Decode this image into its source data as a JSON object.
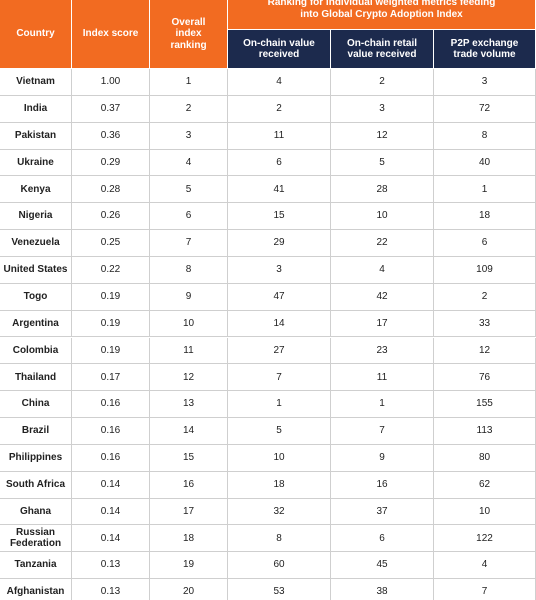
{
  "header": {
    "country": "Country",
    "index_score": "Index score",
    "overall_ranking": "Overall index ranking",
    "group_title": "Ranking for individual weighted metrics feeding into Global Crypto Adoption Index",
    "subheaders": [
      "On-chain value received",
      "On-chain retail value received",
      "P2P exchange trade volume"
    ]
  },
  "table": {
    "rows": [
      [
        "Vietnam",
        "1.00",
        "1",
        "4",
        "2",
        "3"
      ],
      [
        "India",
        "0.37",
        "2",
        "2",
        "3",
        "72"
      ],
      [
        "Pakistan",
        "0.36",
        "3",
        "11",
        "12",
        "8"
      ],
      [
        "Ukraine",
        "0.29",
        "4",
        "6",
        "5",
        "40"
      ],
      [
        "Kenya",
        "0.28",
        "5",
        "41",
        "28",
        "1"
      ],
      [
        "Nigeria",
        "0.26",
        "6",
        "15",
        "10",
        "18"
      ],
      [
        "Venezuela",
        "0.25",
        "7",
        "29",
        "22",
        "6"
      ],
      [
        "United States",
        "0.22",
        "8",
        "3",
        "4",
        "109"
      ],
      [
        "Togo",
        "0.19",
        "9",
        "47",
        "42",
        "2"
      ],
      [
        "Argentina",
        "0.19",
        "10",
        "14",
        "17",
        "33"
      ],
      [
        "Colombia",
        "0.19",
        "11",
        "27",
        "23",
        "12"
      ],
      [
        "Thailand",
        "0.17",
        "12",
        "7",
        "11",
        "76"
      ],
      [
        "China",
        "0.16",
        "13",
        "1",
        "1",
        "155"
      ],
      [
        "Brazil",
        "0.16",
        "14",
        "5",
        "7",
        "113"
      ],
      [
        "Philippines",
        "0.16",
        "15",
        "10",
        "9",
        "80"
      ],
      [
        "South Africa",
        "0.14",
        "16",
        "18",
        "16",
        "62"
      ],
      [
        "Ghana",
        "0.14",
        "17",
        "32",
        "37",
        "10"
      ],
      [
        "Russian Federation",
        "0.14",
        "18",
        "8",
        "6",
        "122"
      ],
      [
        "Tanzania",
        "0.13",
        "19",
        "60",
        "45",
        "4"
      ],
      [
        "Afghanistan",
        "0.13",
        "20",
        "53",
        "38",
        "7"
      ]
    ]
  }
}
